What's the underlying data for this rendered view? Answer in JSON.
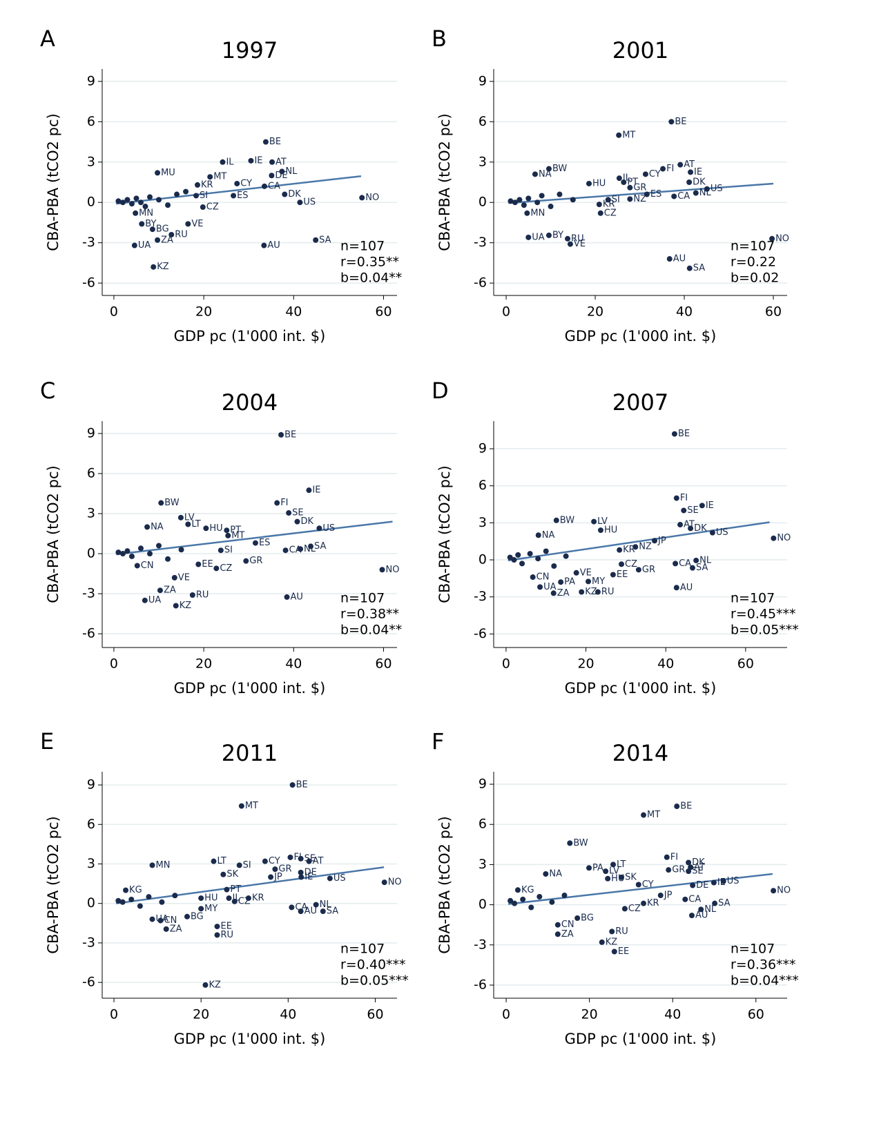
{
  "chart_data": [
    {
      "type": "scatter",
      "panel": "A",
      "title": "1997",
      "xlabel": "GDP pc (1'000 int. $)",
      "ylabel": "CBA-PBA (tCO2 pc)",
      "xlim": [
        -2.6,
        63
      ],
      "ylim": [
        -6.92,
        9.92
      ],
      "xticks": [
        0,
        20,
        40,
        60
      ],
      "yticks": [
        -6,
        -3,
        0,
        3,
        6,
        9
      ],
      "grid": true,
      "color": "#1a2b4c",
      "line_color": "#4a77a8",
      "x": [
        33.8,
        24.2,
        30.5,
        35.2,
        37.4,
        35.1,
        21.4,
        27.4,
        33.5,
        38,
        41.4,
        55.2,
        26.6,
        18.6,
        18.3,
        9.7,
        19.8,
        4.8,
        6.2,
        8.6,
        12.8,
        9.7,
        4.6,
        8.8,
        16.5,
        33.4,
        44.9,
        1,
        2,
        3,
        4,
        5,
        6,
        7,
        8,
        10,
        12,
        14,
        16
      ],
      "y": [
        4.5,
        3.0,
        3.1,
        3.0,
        2.3,
        2.0,
        1.9,
        1.4,
        1.2,
        0.6,
        0,
        0.35,
        0.5,
        1.3,
        0.5,
        2.2,
        -0.35,
        -0.8,
        -1.6,
        -2.0,
        -2.4,
        -2.8,
        -3.2,
        -4.8,
        -1.6,
        -3.2,
        -2.8,
        0.1,
        0,
        0.2,
        -0.1,
        0.3,
        0,
        -0.3,
        0.4,
        0.2,
        -0.2,
        0.6,
        0.8
      ],
      "labels": [
        "BE",
        "IL",
        "IE",
        "AT",
        "NL",
        "DE",
        "MT",
        "CY",
        "CA",
        "DK",
        "US",
        "NO",
        "ES",
        "KR",
        "SI",
        "MU",
        "CZ",
        "MN",
        "BY",
        "BG",
        "RU",
        "ZA",
        "UA",
        "KZ",
        "VE",
        "AU",
        "SA",
        null,
        null,
        null,
        null,
        null,
        null,
        null,
        null,
        null,
        null,
        null,
        null
      ],
      "trend": {
        "x": [
          0.5,
          55
        ],
        "y": [
          -0.1,
          1.95
        ]
      },
      "annotations": [
        "n=107",
        "r=0.35**",
        "b=0.04**"
      ]
    },
    {
      "type": "scatter",
      "panel": "B",
      "title": "2001",
      "xlabel": "GDP pc (1'000 int. $)",
      "ylabel": "CBA-PBA (tCO2 pc)",
      "xlim": [
        -2.8,
        63.1
      ],
      "ylim": [
        -6.92,
        9.92
      ],
      "xticks": [
        0,
        20,
        40,
        60
      ],
      "yticks": [
        -6,
        -3,
        0,
        3,
        6,
        9
      ],
      "grid": true,
      "color": "#1a2b4c",
      "line_color": "#4a77a8",
      "x": [
        37.1,
        25.3,
        9.6,
        39.1,
        35.2,
        31.3,
        41.4,
        25.4,
        26.4,
        27.8,
        18.6,
        41.1,
        45.1,
        42.6,
        31.6,
        37.7,
        27.8,
        22.9,
        20.9,
        21.2,
        59.7,
        36.7,
        41.2,
        5.0,
        9.6,
        13.8,
        14.4,
        6.5,
        4.7,
        1,
        2,
        3,
        4,
        5,
        7,
        8,
        10,
        12,
        15
      ],
      "y": [
        6.0,
        5.0,
        2.5,
        2.8,
        2.5,
        2.1,
        2.25,
        1.8,
        1.5,
        1.1,
        1.4,
        1.5,
        1.0,
        0.7,
        0.6,
        0.45,
        0.25,
        0.2,
        -0.15,
        -0.8,
        -2.7,
        -4.2,
        -4.9,
        -2.6,
        -2.45,
        -2.7,
        -3.1,
        2.1,
        -0.8,
        0.1,
        0,
        0.2,
        -0.2,
        0.3,
        0,
        0.5,
        -0.3,
        0.6,
        0.2
      ],
      "labels": [
        "BE",
        "MT",
        "BW",
        "AT",
        "FI",
        "CY",
        "IE",
        "IL",
        "PT",
        "GR",
        "HU",
        "DK",
        "US",
        "NL",
        "ES",
        "CA",
        "NZ",
        "SI",
        "KR",
        "CZ",
        "NO",
        "AU",
        "SA",
        "UA",
        "BY",
        "RU",
        "VE",
        "NA",
        "MN",
        null,
        null,
        null,
        null,
        null,
        null,
        null,
        null,
        null,
        null
      ],
      "trend": {
        "x": [
          0.5,
          60
        ],
        "y": [
          -0.05,
          1.4
        ]
      },
      "annotations": [
        "n=107",
        "r=0.22",
        "b=0.02"
      ]
    },
    {
      "type": "scatter",
      "panel": "C",
      "title": "2004",
      "xlabel": "GDP pc (1'000 int. $)",
      "ylabel": "CBA-PBA (tCO2 pc)",
      "xlim": [
        -2.6,
        63
      ],
      "ylim": [
        -7.03,
        9.93
      ],
      "xticks": [
        0,
        20,
        40,
        60
      ],
      "yticks": [
        -6,
        -3,
        0,
        3,
        6,
        9
      ],
      "grid": true,
      "color": "#1a2b4c",
      "line_color": "#4a77a8",
      "x": [
        37.2,
        43.4,
        10.5,
        36.3,
        14.9,
        38.9,
        40.8,
        45.7,
        20.5,
        7.4,
        16.5,
        25.1,
        25.4,
        31.5,
        23.8,
        38.2,
        41.5,
        43.8,
        59.7,
        29.4,
        22.8,
        5.2,
        13.5,
        10.3,
        17.5,
        6.9,
        13.8,
        38.5,
        18.8,
        1,
        2,
        3,
        4,
        6,
        8,
        10,
        12,
        15
      ],
      "y": [
        8.9,
        4.75,
        3.8,
        3.8,
        2.7,
        3.05,
        2.4,
        1.9,
        1.9,
        2.0,
        2.2,
        1.75,
        1.35,
        0.8,
        0.25,
        0.25,
        0.35,
        0.55,
        -1.2,
        -0.55,
        -1.1,
        -0.9,
        -1.8,
        -2.75,
        -3.1,
        -3.5,
        -3.9,
        -3.25,
        -0.8,
        0.1,
        0,
        0.2,
        -0.2,
        0.4,
        0,
        0.6,
        -0.4,
        0.3
      ],
      "labels": [
        "BE",
        "IE",
        "BW",
        "FI",
        "LV",
        "SE",
        "DK",
        "US",
        "HU",
        "NA",
        "LT",
        "PT",
        "MT",
        "ES",
        "SI",
        "CA",
        "NL",
        "SA",
        "NO",
        "GR",
        "CZ",
        "CN",
        "VE",
        "ZA",
        "RU",
        "UA",
        "KZ",
        "AU",
        "EE",
        null,
        null,
        null,
        null,
        null,
        null,
        null,
        null,
        null
      ],
      "trend": {
        "x": [
          0.5,
          62
        ],
        "y": [
          -0.05,
          2.4
        ]
      },
      "annotations": [
        "n=107",
        "r=0.38**",
        "b=0.04**"
      ]
    },
    {
      "type": "scatter",
      "panel": "D",
      "title": "2007",
      "xlabel": "GDP pc (1'000 int. $)",
      "ylabel": "CBA-PBA (tCO2 pc)",
      "xlim": [
        -3.1,
        70.4
      ],
      "ylim": [
        -7.1,
        11.24
      ],
      "xticks": [
        0,
        20,
        40,
        60
      ],
      "yticks": [
        -6,
        -3,
        0,
        3,
        6,
        9
      ],
      "grid": true,
      "color": "#1a2b4c",
      "line_color": "#4a77a8",
      "x": [
        42.2,
        42.7,
        49.1,
        44.5,
        12.6,
        22.0,
        23.7,
        8.1,
        43.6,
        46.2,
        51.7,
        37.2,
        32.4,
        28.4,
        67.0,
        42.4,
        47.6,
        46.7,
        28.9,
        33.2,
        26.8,
        20.6,
        13.7,
        17.6,
        6.7,
        8.5,
        11.9,
        18.9,
        23.0,
        42.7,
        1,
        2,
        3,
        4,
        6,
        8,
        10,
        12,
        15
      ],
      "y": [
        10.2,
        5.0,
        4.4,
        4.0,
        3.2,
        3.1,
        2.4,
        2.0,
        2.85,
        2.55,
        2.2,
        1.55,
        1.05,
        0.8,
        1.75,
        -0.3,
        -0.05,
        -0.65,
        -0.35,
        -0.8,
        -1.2,
        -1.75,
        -1.8,
        -1.05,
        -1.4,
        -2.2,
        -2.7,
        -2.6,
        -2.6,
        -2.25,
        0.2,
        0,
        0.4,
        -0.3,
        0.5,
        0.1,
        0.7,
        -0.5,
        0.3
      ],
      "labels": [
        "BE",
        "FI",
        "IE",
        "SE",
        "BW",
        "LV",
        "HU",
        "NA",
        "AT",
        "DK",
        "US",
        "JP",
        "NZ",
        "KR",
        "NO",
        "CA",
        "NL",
        "SA",
        "CZ",
        "GR",
        "EE",
        "MY",
        "PA",
        "VE",
        "CN",
        "UA",
        "ZA",
        "KZ",
        "RU",
        "AU",
        null,
        null,
        null,
        null,
        null,
        null,
        null,
        null,
        null
      ],
      "trend": {
        "x": [
          0.5,
          66
        ],
        "y": [
          -0.05,
          3.05
        ]
      },
      "annotations": [
        "n=107",
        "r=0.45***",
        "b=0.05***"
      ]
    },
    {
      "type": "scatter",
      "panel": "E",
      "title": "2011",
      "xlabel": "GDP pc (1'000 int. $)",
      "ylabel": "CBA-PBA (tCO2 pc)",
      "xlim": [
        -2.7,
        65
      ],
      "ylim": [
        -7.2,
        10
      ],
      "xticks": [
        0,
        20,
        40,
        60
      ],
      "yticks": [
        -6,
        -3,
        0,
        3,
        6,
        9
      ],
      "grid": true,
      "color": "#1a2b4c",
      "line_color": "#4a77a8",
      "x": [
        41,
        29.3,
        22.9,
        28.8,
        8.8,
        25.1,
        34.7,
        40.5,
        42.9,
        44.8,
        37,
        36,
        42.9,
        43,
        49.6,
        62.1,
        2.7,
        25.9,
        26.4,
        20,
        30.9,
        27.7,
        40.8,
        46.4,
        42.9,
        48,
        20,
        16.8,
        8.8,
        10.7,
        12,
        23.7,
        23.7,
        21,
        1,
        2,
        4,
        6,
        8,
        11,
        14
      ],
      "y": [
        9.0,
        7.4,
        3.2,
        2.9,
        2.9,
        2.2,
        3.2,
        3.5,
        3.4,
        3.2,
        2.6,
        2.0,
        2.35,
        2.0,
        1.9,
        1.6,
        1.0,
        1.05,
        0.4,
        0.4,
        0.4,
        0.15,
        -0.3,
        -0.1,
        -0.6,
        -0.6,
        -0.4,
        -1.0,
        -1.2,
        -1.3,
        -1.95,
        -1.75,
        -2.4,
        -6.2,
        0.2,
        0.1,
        0.3,
        -0.2,
        0.5,
        0.1,
        0.6
      ],
      "labels": [
        "BE",
        "MT",
        "LT",
        "SI",
        "MN",
        "SK",
        "CY",
        "FI",
        "SE",
        "AT",
        "GR",
        "JP",
        "DE",
        "IE",
        "US",
        "NO",
        "KG",
        "PT",
        "IL",
        "HU",
        "KR",
        "CZ",
        "CA",
        "NL",
        "AU",
        "SA",
        "MY",
        "BG",
        "UA",
        "CN",
        "ZA",
        "EE",
        "RU",
        "KZ",
        null,
        null,
        null,
        null,
        null,
        null,
        null
      ],
      "trend": {
        "x": [
          0.5,
          62
        ],
        "y": [
          0,
          2.75
        ]
      },
      "annotations": [
        "n=107",
        "r=0.40***",
        "b=0.05***"
      ]
    },
    {
      "type": "scatter",
      "panel": "F",
      "title": "2014",
      "xlabel": "GDP pc (1'000 int. $)",
      "ylabel": "CBA-PBA (tCO2 pc)",
      "xlim": [
        -3,
        67.5
      ],
      "ylim": [
        -6.98,
        9.93
      ],
      "xticks": [
        0,
        20,
        40,
        60
      ],
      "yticks": [
        -6,
        -3,
        0,
        3,
        6,
        9
      ],
      "grid": true,
      "color": "#1a2b4c",
      "line_color": "#4a77a8",
      "x": [
        41,
        33,
        15.3,
        38.6,
        43.8,
        43.8,
        39,
        44.3,
        25.7,
        19.9,
        23.9,
        9.5,
        24.4,
        27.7,
        31.8,
        44.8,
        49.9,
        52.2,
        64.2,
        37.1,
        43,
        46.8,
        50.1,
        44.6,
        33,
        28.5,
        17.1,
        12.4,
        12.4,
        25.4,
        23,
        26,
        2.8,
        1,
        2,
        4,
        6,
        8,
        11,
        14
      ],
      "y": [
        7.35,
        6.7,
        4.6,
        3.55,
        3.15,
        2.5,
        2.6,
        2.8,
        3.0,
        2.75,
        2.5,
        2.3,
        1.95,
        2.05,
        1.5,
        1.45,
        1.65,
        1.75,
        1.05,
        0.7,
        0.4,
        -0.35,
        0.1,
        -0.8,
        0.1,
        -0.3,
        -1.0,
        -1.5,
        -2.2,
        -2.0,
        -2.8,
        -3.5,
        1.1,
        0.3,
        0.1,
        0.4,
        -0.2,
        0.6,
        0.2,
        0.7
      ],
      "labels": [
        "BE",
        "MT",
        "BW",
        "FI",
        "DK",
        "SE",
        "GR",
        "AT",
        "LT",
        "PA",
        "LV",
        "NA",
        "HU",
        "SK",
        "CY",
        "DE",
        "IE",
        "US",
        "NO",
        "JP",
        "CA",
        "NL",
        "SA",
        "AU",
        "KR",
        "CZ",
        "BG",
        "CN",
        "ZA",
        "RU",
        "KZ",
        "EE",
        "KG",
        null,
        null,
        null,
        null,
        null,
        null,
        null
      ],
      "trend": {
        "x": [
          0.5,
          64
        ],
        "y": [
          0.05,
          2.3
        ]
      },
      "annotations": [
        "n=107",
        "r=0.36***",
        "b=0.04***"
      ]
    }
  ]
}
